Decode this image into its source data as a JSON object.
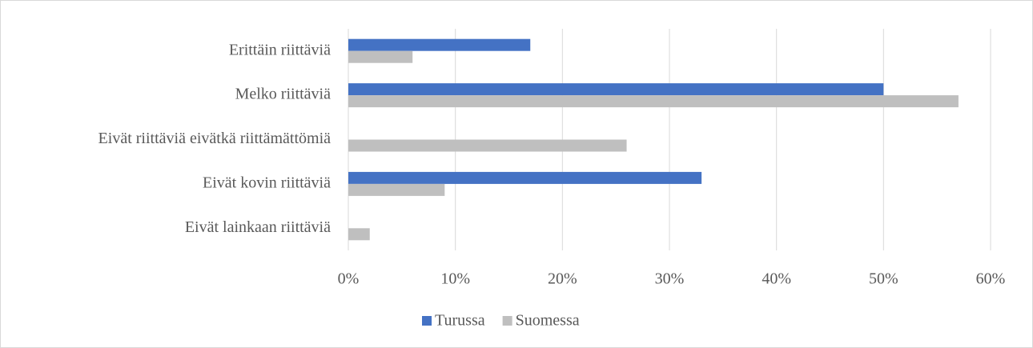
{
  "chart_data": {
    "type": "hbar",
    "categories": [
      "Erittäin riittäviä",
      "Melko riittäviä",
      "Eivät riittäviä eivätkä riittämättömiä",
      "Eivät kovin riittäviä",
      "Eivät lainkaan riittäviä"
    ],
    "series": [
      {
        "name": "Turussa",
        "color": "#4472c4",
        "values": [
          17,
          50,
          0,
          33,
          0
        ]
      },
      {
        "name": "Suomessa",
        "color": "#bfbfbf",
        "values": [
          6,
          57,
          26,
          9,
          2
        ]
      }
    ],
    "xlim": [
      0,
      60
    ],
    "xticks": [
      {
        "value": 0,
        "label": "0%"
      },
      {
        "value": 10,
        "label": "10%"
      },
      {
        "value": 20,
        "label": "20%"
      },
      {
        "value": 30,
        "label": "30%"
      },
      {
        "value": 40,
        "label": "40%"
      },
      {
        "value": 50,
        "label": "50%"
      },
      {
        "value": 60,
        "label": "60%"
      }
    ],
    "grid": true,
    "legend": "bottom"
  }
}
